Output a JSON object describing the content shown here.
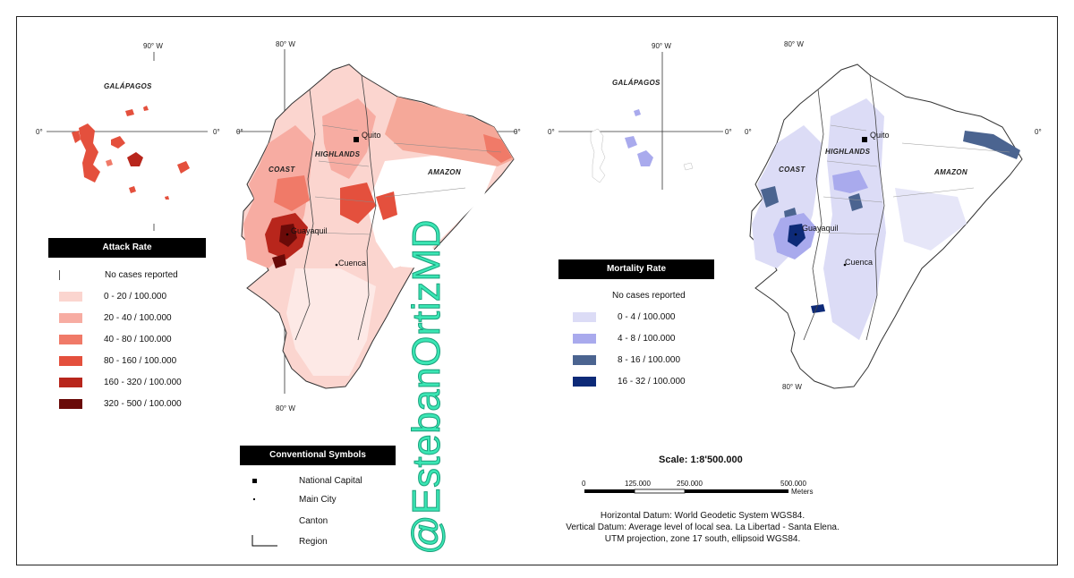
{
  "coords": {
    "w90": "90° W",
    "w80": "80° W",
    "zero": "0°"
  },
  "region_labels": {
    "galapagos": "GALÁPAGOS",
    "coast": "COAST",
    "highlands": "HIGHLANDS",
    "amazon": "AMAZON"
  },
  "cities": {
    "quito": "Quito",
    "guayaquil": "Guayaquil",
    "cuenca": "Cuenca"
  },
  "attack_legend": {
    "title": "Attack Rate",
    "no_cases": "No cases reported",
    "classes": [
      {
        "label": "0 - 20 / 100.000",
        "color": "#fbd5cf"
      },
      {
        "label": "20 - 40 / 100.000",
        "color": "#f7aca2"
      },
      {
        "label": "40 - 80 / 100.000",
        "color": "#f07a68"
      },
      {
        "label": "80 - 160 / 100.000",
        "color": "#e4503d"
      },
      {
        "label": "160 - 320 / 100.000",
        "color": "#b8261c"
      },
      {
        "label": "320 - 500 / 100.000",
        "color": "#6a0a08"
      }
    ]
  },
  "mortality_legend": {
    "title": "Mortality Rate",
    "no_cases": "No cases reported",
    "classes": [
      {
        "label": "0 - 4 / 100.000",
        "color": "#dcdcf6"
      },
      {
        "label": "4 - 8 / 100.000",
        "color": "#a9aaed"
      },
      {
        "label": "8 - 16 / 100.000",
        "color": "#4b6490"
      },
      {
        "label": "16 - 32 / 100.000",
        "color": "#0d2a78"
      }
    ]
  },
  "symbols": {
    "title": "Conventional Symbols",
    "items": [
      "National Capital",
      "Main City",
      "Canton",
      "Region"
    ]
  },
  "scale": {
    "title": "Scale: 1:8'500.000",
    "ticks": [
      "0",
      "125.000",
      "250.000",
      "500.000"
    ],
    "unit": "Meters"
  },
  "notes": [
    "Horizontal Datum: World Geodetic System WGS84.",
    "Vertical Datum: Average level of local sea. La Libertad - Santa Elena.",
    "UTM projection, zone 17 south, ellipsoid WGS84."
  ],
  "watermark": "@EstebanOrtizMD"
}
